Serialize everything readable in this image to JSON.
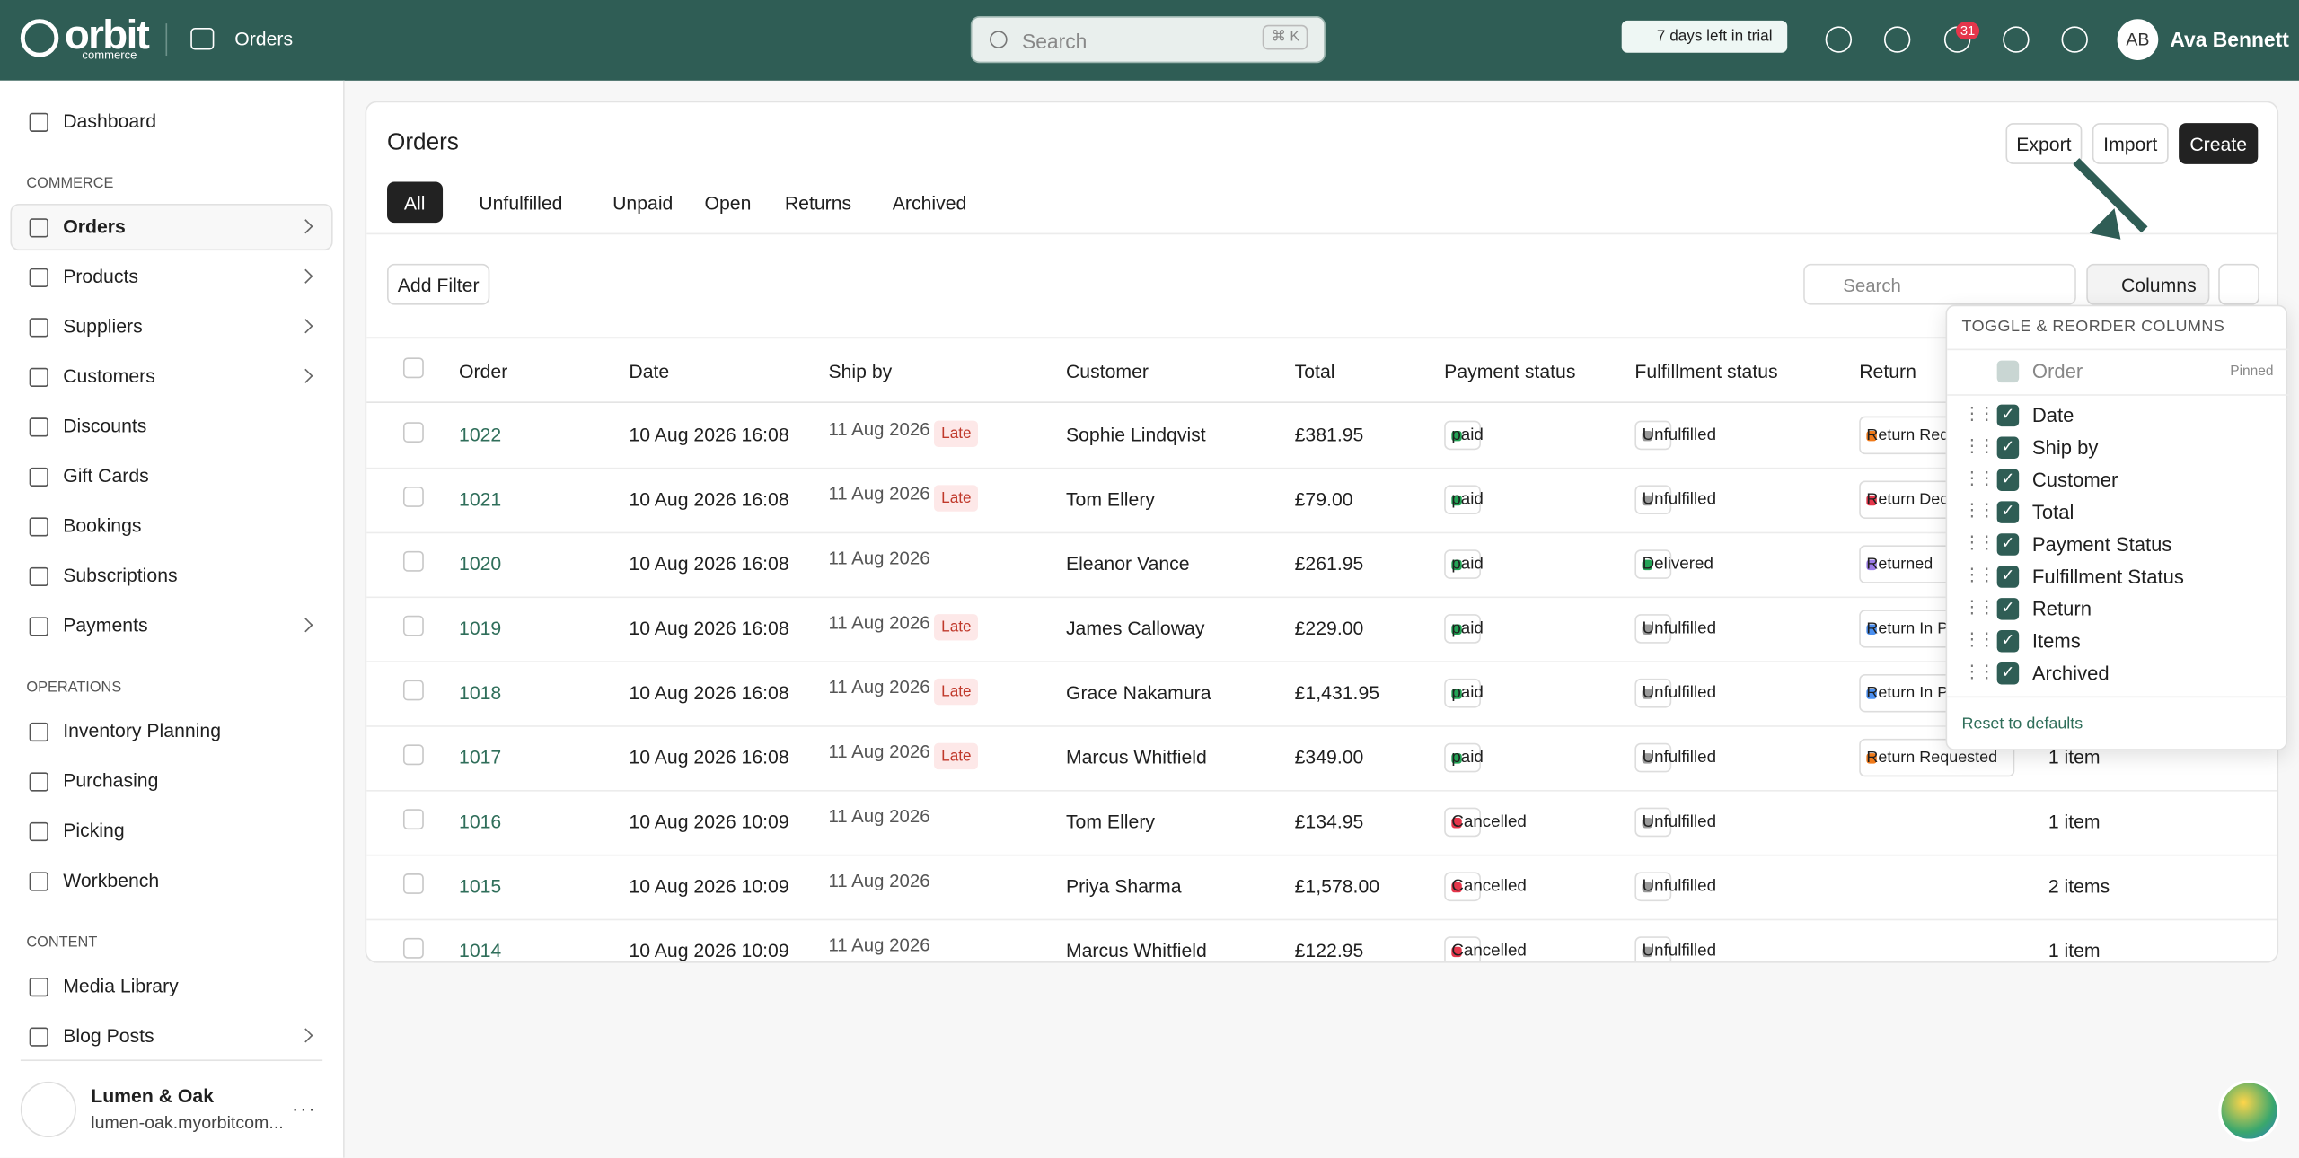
{
  "header": {
    "logo": "orbit",
    "logo_sub": "commerce",
    "page": "Orders",
    "search": "Search",
    "shortcut": "⌘ K",
    "trial": "7 days left in trial",
    "notifications": "31",
    "avatar": "AB",
    "user": "Ava Bennett"
  },
  "sidebar": {
    "top": [
      {
        "label": "Dashboard",
        "chevron": false
      }
    ],
    "sections": [
      {
        "title": "COMMERCE",
        "items": [
          {
            "label": "Orders",
            "chevron": true,
            "active": true
          },
          {
            "label": "Products",
            "chevron": true,
            "active": false
          },
          {
            "label": "Suppliers",
            "chevron": true,
            "active": false
          },
          {
            "label": "Customers",
            "chevron": true,
            "active": false
          },
          {
            "label": "Discounts",
            "chevron": false,
            "active": false
          },
          {
            "label": "Gift Cards",
            "chevron": false,
            "active": false
          },
          {
            "label": "Bookings",
            "chevron": false,
            "active": false
          },
          {
            "label": "Subscriptions",
            "chevron": false,
            "active": false
          },
          {
            "label": "Payments",
            "chevron": true,
            "active": false
          }
        ]
      },
      {
        "title": "OPERATIONS",
        "items": [
          {
            "label": "Inventory Planning",
            "chevron": false,
            "active": false
          },
          {
            "label": "Purchasing",
            "chevron": false,
            "active": false
          },
          {
            "label": "Picking",
            "chevron": false,
            "active": false
          },
          {
            "label": "Workbench",
            "chevron": false,
            "active": false
          }
        ]
      },
      {
        "title": "CONTENT",
        "items": [
          {
            "label": "Media Library",
            "chevron": false,
            "active": false
          },
          {
            "label": "Blog Posts",
            "chevron": true,
            "active": false
          }
        ]
      }
    ],
    "store": {
      "name": "Lumen & Oak",
      "url": "lumen-oak.myorbitcom..."
    }
  },
  "page": {
    "title": "Orders",
    "actions": [
      "Export",
      "Import",
      "Create"
    ],
    "tabs": [
      "All",
      "Unfulfilled",
      "Unpaid",
      "Open",
      "Returns",
      "Archived"
    ],
    "active_tab": 0,
    "add_filter": "Add Filter",
    "search": "Search",
    "columns_button": "Columns"
  },
  "table": {
    "headers": [
      "Order",
      "Date",
      "Ship by",
      "Customer",
      "Total",
      "Payment status",
      "Fulfillment status",
      "Return"
    ],
    "rows": [
      {
        "order": "1022",
        "date": "10 Aug 2026 16:08",
        "ship_by": "11 Aug 2026",
        "flag": "Late",
        "customer": "Sophie Lindqvist",
        "total": "£381.95",
        "payment": "paid",
        "payment_color": "#22a355",
        "fulfillment": "Unfulfilled",
        "fulfillment_color": "#9a9a9a",
        "return": "Return Requested",
        "return_color": "#f07a1a"
      },
      {
        "order": "1021",
        "date": "10 Aug 2026 16:08",
        "ship_by": "11 Aug 2026",
        "flag": "Late",
        "customer": "Tom Ellery",
        "total": "£79.00",
        "payment": "paid",
        "payment_color": "#22a355",
        "fulfillment": "Unfulfilled",
        "fulfillment_color": "#9a9a9a",
        "return": "Return Declined",
        "return_color": "#e5364b"
      },
      {
        "order": "1020",
        "date": "10 Aug 2026 16:08",
        "ship_by": "11 Aug 2026",
        "customer": "Eleanor Vance",
        "total": "£261.95",
        "payment": "paid",
        "payment_color": "#22a355",
        "fulfillment": "Delivered",
        "fulfillment_color": "#22a355",
        "return": "Returned",
        "return_color": "#9b7be8"
      },
      {
        "order": "1019",
        "date": "10 Aug 2026 16:08",
        "ship_by": "11 Aug 2026",
        "flag": "Late",
        "customer": "James Calloway",
        "total": "£229.00",
        "payment": "paid",
        "payment_color": "#22a355",
        "fulfillment": "Unfulfilled",
        "fulfillment_color": "#9a9a9a",
        "return": "Return In Progress",
        "return_color": "#4a8ff0"
      },
      {
        "order": "1018",
        "date": "10 Aug 2026 16:08",
        "ship_by": "11 Aug 2026",
        "flag": "Late",
        "customer": "Grace Nakamura",
        "total": "£1,431.95",
        "payment": "paid",
        "payment_color": "#22a355",
        "fulfillment": "Unfulfilled",
        "fulfillment_color": "#9a9a9a",
        "return": "Return In Progress",
        "return_color": "#4a8ff0"
      },
      {
        "order": "1017",
        "date": "10 Aug 2026 16:08",
        "ship_by": "11 Aug 2026",
        "flag": "Late",
        "customer": "Marcus Whitfield",
        "total": "£349.00",
        "payment": "paid",
        "payment_color": "#22a355",
        "fulfillment": "Unfulfilled",
        "fulfillment_color": "#9a9a9a",
        "return": "Return Requested",
        "return_color": "#f07a1a",
        "items": "1 item"
      },
      {
        "order": "1016",
        "date": "10 Aug 2026 10:09",
        "ship_by": "11 Aug 2026",
        "customer": "Tom Ellery",
        "total": "£134.95",
        "payment": "Cancelled",
        "payment_color": "#e5364b",
        "fulfillment": "Unfulfilled",
        "fulfillment_color": "#9a9a9a",
        "items": "1 item"
      },
      {
        "order": "1015",
        "date": "10 Aug 2026 10:09",
        "ship_by": "11 Aug 2026",
        "customer": "Priya Sharma",
        "total": "£1,578.00",
        "payment": "Cancelled",
        "payment_color": "#e5364b",
        "fulfillment": "Unfulfilled",
        "fulfillment_color": "#9a9a9a",
        "items": "2 items"
      },
      {
        "order": "1014",
        "date": "10 Aug 2026 10:09",
        "ship_by": "11 Aug 2026",
        "customer": "Marcus Whitfield",
        "total": "£122.95",
        "payment": "Cancelled",
        "payment_color": "#e5364b",
        "fulfillment": "Unfulfilled",
        "fulfillment_color": "#9a9a9a",
        "items": "1 item"
      }
    ]
  },
  "columns_panel": {
    "title": "TOGGLE & REORDER COLUMNS",
    "pinned": {
      "label": "Order",
      "tag": "Pinned"
    },
    "items": [
      "Date",
      "Ship by",
      "Customer",
      "Total",
      "Payment Status",
      "Fulfillment Status",
      "Return",
      "Items",
      "Archived"
    ],
    "reset": "Reset to defaults"
  }
}
